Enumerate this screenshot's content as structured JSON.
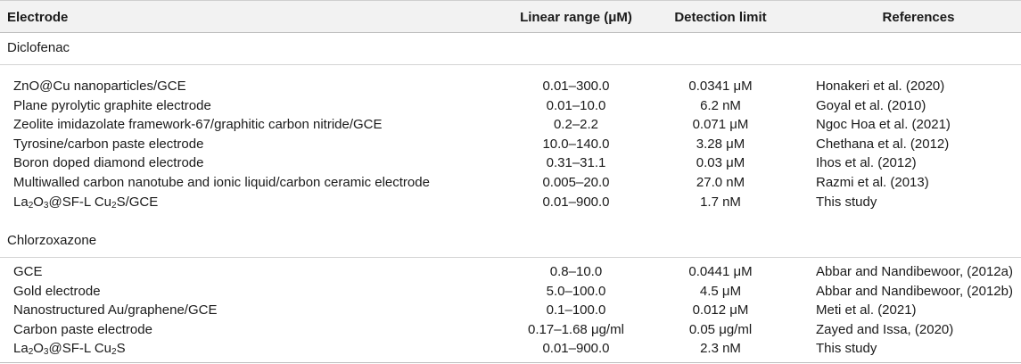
{
  "headers": {
    "electrode": "Electrode",
    "linear_range": "Linear range (μM)",
    "detection_limit": "Detection limit",
    "references": "References"
  },
  "sections": [
    {
      "title": "Diclofenac",
      "rows": [
        {
          "electrode": "ZnO@Cu nanoparticles/GCE",
          "range": "0.01–300.0",
          "limit": "0.0341 μM",
          "ref": "Honakeri et al. (2020)"
        },
        {
          "electrode": "Plane pyrolytic graphite electrode",
          "range": "0.01–10.0",
          "limit": "6.2 nM",
          "ref": "Goyal et al. (2010)"
        },
        {
          "electrode": "Zeolite imidazolate framework-67/graphitic carbon nitride/GCE",
          "range": "0.2–2.2",
          "limit": "0.071 μM",
          "ref": "Ngoc Hoa et al. (2021)"
        },
        {
          "electrode": "Tyrosine/carbon paste electrode",
          "range": "10.0–140.0",
          "limit": "3.28 μM",
          "ref": "Chethana et al. (2012)"
        },
        {
          "electrode": "Boron doped diamond electrode",
          "range": "0.31–31.1",
          "limit": "0.03 μM",
          "ref": "Ihos et al. (2012)"
        },
        {
          "electrode": "Multiwalled carbon nanotube and ionic liquid/carbon ceramic electrode",
          "range": "0.005–20.0",
          "limit": "27.0 nM",
          "ref": "Razmi et al. (2013)"
        },
        {
          "electrode_html": "La<sub>2</sub>O<sub>3</sub>@SF-L Cu<sub>2</sub>S/GCE",
          "electrode": "La2O3@SF-L Cu2S/GCE",
          "range": "0.01–900.0",
          "limit": "1.7 nM",
          "ref": "This study"
        }
      ]
    },
    {
      "title": "Chlorzoxazone",
      "rows": [
        {
          "electrode": "GCE",
          "range": "0.8–10.0",
          "limit": "0.0441 μM",
          "ref": "Abbar and Nandibewoor, (2012a)"
        },
        {
          "electrode": "Gold electrode",
          "range": "5.0–100.0",
          "limit": "4.5 μM",
          "ref": "Abbar and Nandibewoor, (2012b)"
        },
        {
          "electrode": "Nanostructured Au/graphene/GCE",
          "range": "0.1–100.0",
          "limit": "0.012 μM",
          "ref": "Meti et al. (2021)"
        },
        {
          "electrode": "Carbon paste electrode",
          "range": "0.17–1.68 μg/ml",
          "limit": "0.05 μg/ml",
          "ref": "Zayed and Issa, (2020)"
        },
        {
          "electrode_html": "La<sub>2</sub>O<sub>3</sub>@SF-L Cu<sub>2</sub>S",
          "electrode": "La2O3@SF-L Cu2S",
          "range": "0.01–900.0",
          "limit": "2.3 nM",
          "ref": "This study"
        }
      ]
    }
  ]
}
